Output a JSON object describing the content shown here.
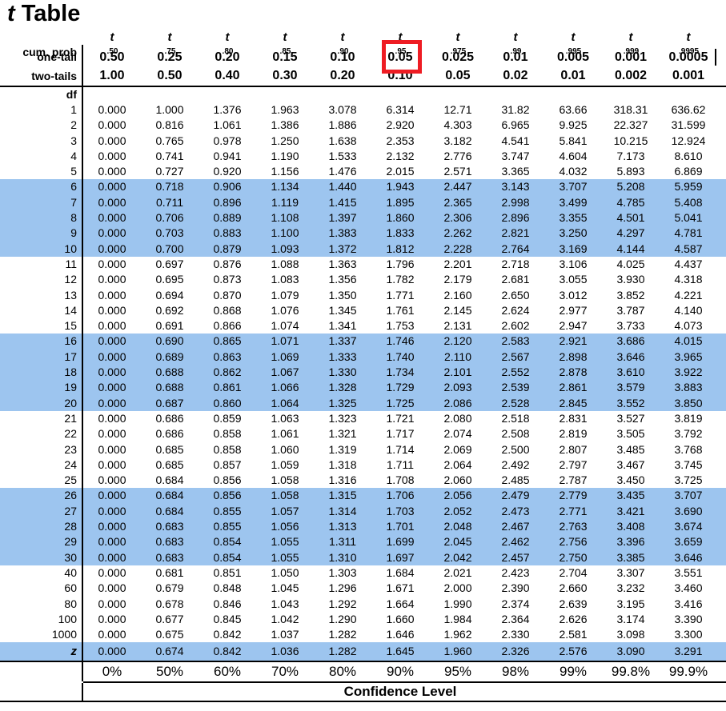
{
  "title": {
    "italic_t": "t",
    "rest": " Table"
  },
  "colors": {
    "row_highlight": "#9dc5ef",
    "highlight_box": "#ee1c23",
    "line": "#000000",
    "text": "#000000"
  },
  "header": {
    "corner_label": "cum. prob",
    "one_tail_label": "one-tail",
    "two_tails_label": "two-tails",
    "df_label": "df",
    "t_symbol": "t",
    "t_subscripts": [
      ".50",
      ".75",
      ".80",
      ".85",
      ".90",
      ".95",
      ".975",
      ".99",
      ".995",
      ".999",
      ".9995"
    ],
    "one_tail_values": [
      "0.50",
      "0.25",
      "0.20",
      "0.15",
      "0.10",
      "0.05",
      "0.025",
      "0.01",
      "0.005",
      "0.001",
      "0.0005"
    ],
    "two_tails_values": [
      "1.00",
      "0.50",
      "0.40",
      "0.30",
      "0.20",
      "0.10",
      "0.05",
      "0.02",
      "0.01",
      "0.002",
      "0.001"
    ],
    "boxed_one_tail_index": 5,
    "boxed_one_tail_value": "0.05"
  },
  "rows": [
    {
      "df": "1",
      "hl": false,
      "values": [
        "0.000",
        "1.000",
        "1.376",
        "1.963",
        "3.078",
        "6.314",
        "12.71",
        "31.82",
        "63.66",
        "318.31",
        "636.62"
      ]
    },
    {
      "df": "2",
      "hl": false,
      "values": [
        "0.000",
        "0.816",
        "1.061",
        "1.386",
        "1.886",
        "2.920",
        "4.303",
        "6.965",
        "9.925",
        "22.327",
        "31.599"
      ]
    },
    {
      "df": "3",
      "hl": false,
      "values": [
        "0.000",
        "0.765",
        "0.978",
        "1.250",
        "1.638",
        "2.353",
        "3.182",
        "4.541",
        "5.841",
        "10.215",
        "12.924"
      ]
    },
    {
      "df": "4",
      "hl": false,
      "values": [
        "0.000",
        "0.741",
        "0.941",
        "1.190",
        "1.533",
        "2.132",
        "2.776",
        "3.747",
        "4.604",
        "7.173",
        "8.610"
      ]
    },
    {
      "df": "5",
      "hl": false,
      "values": [
        "0.000",
        "0.727",
        "0.920",
        "1.156",
        "1.476",
        "2.015",
        "2.571",
        "3.365",
        "4.032",
        "5.893",
        "6.869"
      ]
    },
    {
      "df": "6",
      "hl": true,
      "values": [
        "0.000",
        "0.718",
        "0.906",
        "1.134",
        "1.440",
        "1.943",
        "2.447",
        "3.143",
        "3.707",
        "5.208",
        "5.959"
      ]
    },
    {
      "df": "7",
      "hl": true,
      "values": [
        "0.000",
        "0.711",
        "0.896",
        "1.119",
        "1.415",
        "1.895",
        "2.365",
        "2.998",
        "3.499",
        "4.785",
        "5.408"
      ]
    },
    {
      "df": "8",
      "hl": true,
      "values": [
        "0.000",
        "0.706",
        "0.889",
        "1.108",
        "1.397",
        "1.860",
        "2.306",
        "2.896",
        "3.355",
        "4.501",
        "5.041"
      ]
    },
    {
      "df": "9",
      "hl": true,
      "values": [
        "0.000",
        "0.703",
        "0.883",
        "1.100",
        "1.383",
        "1.833",
        "2.262",
        "2.821",
        "3.250",
        "4.297",
        "4.781"
      ]
    },
    {
      "df": "10",
      "hl": true,
      "values": [
        "0.000",
        "0.700",
        "0.879",
        "1.093",
        "1.372",
        "1.812",
        "2.228",
        "2.764",
        "3.169",
        "4.144",
        "4.587"
      ]
    },
    {
      "df": "11",
      "hl": false,
      "values": [
        "0.000",
        "0.697",
        "0.876",
        "1.088",
        "1.363",
        "1.796",
        "2.201",
        "2.718",
        "3.106",
        "4.025",
        "4.437"
      ]
    },
    {
      "df": "12",
      "hl": false,
      "values": [
        "0.000",
        "0.695",
        "0.873",
        "1.083",
        "1.356",
        "1.782",
        "2.179",
        "2.681",
        "3.055",
        "3.930",
        "4.318"
      ]
    },
    {
      "df": "13",
      "hl": false,
      "values": [
        "0.000",
        "0.694",
        "0.870",
        "1.079",
        "1.350",
        "1.771",
        "2.160",
        "2.650",
        "3.012",
        "3.852",
        "4.221"
      ]
    },
    {
      "df": "14",
      "hl": false,
      "values": [
        "0.000",
        "0.692",
        "0.868",
        "1.076",
        "1.345",
        "1.761",
        "2.145",
        "2.624",
        "2.977",
        "3.787",
        "4.140"
      ]
    },
    {
      "df": "15",
      "hl": false,
      "values": [
        "0.000",
        "0.691",
        "0.866",
        "1.074",
        "1.341",
        "1.753",
        "2.131",
        "2.602",
        "2.947",
        "3.733",
        "4.073"
      ]
    },
    {
      "df": "16",
      "hl": true,
      "values": [
        "0.000",
        "0.690",
        "0.865",
        "1.071",
        "1.337",
        "1.746",
        "2.120",
        "2.583",
        "2.921",
        "3.686",
        "4.015"
      ]
    },
    {
      "df": "17",
      "hl": true,
      "values": [
        "0.000",
        "0.689",
        "0.863",
        "1.069",
        "1.333",
        "1.740",
        "2.110",
        "2.567",
        "2.898",
        "3.646",
        "3.965"
      ]
    },
    {
      "df": "18",
      "hl": true,
      "values": [
        "0.000",
        "0.688",
        "0.862",
        "1.067",
        "1.330",
        "1.734",
        "2.101",
        "2.552",
        "2.878",
        "3.610",
        "3.922"
      ]
    },
    {
      "df": "19",
      "hl": true,
      "values": [
        "0.000",
        "0.688",
        "0.861",
        "1.066",
        "1.328",
        "1.729",
        "2.093",
        "2.539",
        "2.861",
        "3.579",
        "3.883"
      ]
    },
    {
      "df": "20",
      "hl": true,
      "values": [
        "0.000",
        "0.687",
        "0.860",
        "1.064",
        "1.325",
        "1.725",
        "2.086",
        "2.528",
        "2.845",
        "3.552",
        "3.850"
      ]
    },
    {
      "df": "21",
      "hl": false,
      "values": [
        "0.000",
        "0.686",
        "0.859",
        "1.063",
        "1.323",
        "1.721",
        "2.080",
        "2.518",
        "2.831",
        "3.527",
        "3.819"
      ]
    },
    {
      "df": "22",
      "hl": false,
      "values": [
        "0.000",
        "0.686",
        "0.858",
        "1.061",
        "1.321",
        "1.717",
        "2.074",
        "2.508",
        "2.819",
        "3.505",
        "3.792"
      ]
    },
    {
      "df": "23",
      "hl": false,
      "values": [
        "0.000",
        "0.685",
        "0.858",
        "1.060",
        "1.319",
        "1.714",
        "2.069",
        "2.500",
        "2.807",
        "3.485",
        "3.768"
      ]
    },
    {
      "df": "24",
      "hl": false,
      "values": [
        "0.000",
        "0.685",
        "0.857",
        "1.059",
        "1.318",
        "1.711",
        "2.064",
        "2.492",
        "2.797",
        "3.467",
        "3.745"
      ]
    },
    {
      "df": "25",
      "hl": false,
      "values": [
        "0.000",
        "0.684",
        "0.856",
        "1.058",
        "1.316",
        "1.708",
        "2.060",
        "2.485",
        "2.787",
        "3.450",
        "3.725"
      ]
    },
    {
      "df": "26",
      "hl": true,
      "values": [
        "0.000",
        "0.684",
        "0.856",
        "1.058",
        "1.315",
        "1.706",
        "2.056",
        "2.479",
        "2.779",
        "3.435",
        "3.707"
      ]
    },
    {
      "df": "27",
      "hl": true,
      "values": [
        "0.000",
        "0.684",
        "0.855",
        "1.057",
        "1.314",
        "1.703",
        "2.052",
        "2.473",
        "2.771",
        "3.421",
        "3.690"
      ]
    },
    {
      "df": "28",
      "hl": true,
      "values": [
        "0.000",
        "0.683",
        "0.855",
        "1.056",
        "1.313",
        "1.701",
        "2.048",
        "2.467",
        "2.763",
        "3.408",
        "3.674"
      ]
    },
    {
      "df": "29",
      "hl": true,
      "values": [
        "0.000",
        "0.683",
        "0.854",
        "1.055",
        "1.311",
        "1.699",
        "2.045",
        "2.462",
        "2.756",
        "3.396",
        "3.659"
      ]
    },
    {
      "df": "30",
      "hl": true,
      "values": [
        "0.000",
        "0.683",
        "0.854",
        "1.055",
        "1.310",
        "1.697",
        "2.042",
        "2.457",
        "2.750",
        "3.385",
        "3.646"
      ]
    },
    {
      "df": "40",
      "hl": false,
      "values": [
        "0.000",
        "0.681",
        "0.851",
        "1.050",
        "1.303",
        "1.684",
        "2.021",
        "2.423",
        "2.704",
        "3.307",
        "3.551"
      ]
    },
    {
      "df": "60",
      "hl": false,
      "values": [
        "0.000",
        "0.679",
        "0.848",
        "1.045",
        "1.296",
        "1.671",
        "2.000",
        "2.390",
        "2.660",
        "3.232",
        "3.460"
      ]
    },
    {
      "df": "80",
      "hl": false,
      "values": [
        "0.000",
        "0.678",
        "0.846",
        "1.043",
        "1.292",
        "1.664",
        "1.990",
        "2.374",
        "2.639",
        "3.195",
        "3.416"
      ]
    },
    {
      "df": "100",
      "hl": false,
      "values": [
        "0.000",
        "0.677",
        "0.845",
        "1.042",
        "1.290",
        "1.660",
        "1.984",
        "2.364",
        "2.626",
        "3.174",
        "3.390"
      ]
    },
    {
      "df": "1000",
      "hl": false,
      "values": [
        "0.000",
        "0.675",
        "0.842",
        "1.037",
        "1.282",
        "1.646",
        "1.962",
        "2.330",
        "2.581",
        "3.098",
        "3.300"
      ]
    },
    {
      "df": "z",
      "hl": true,
      "values": [
        "0.000",
        "0.674",
        "0.842",
        "1.036",
        "1.282",
        "1.645",
        "1.960",
        "2.326",
        "2.576",
        "3.090",
        "3.291"
      ]
    }
  ],
  "footer": {
    "percentages": [
      "0%",
      "50%",
      "60%",
      "70%",
      "80%",
      "90%",
      "95%",
      "98%",
      "99%",
      "99.8%",
      "99.9%"
    ],
    "confidence_label": "Confidence Level"
  }
}
